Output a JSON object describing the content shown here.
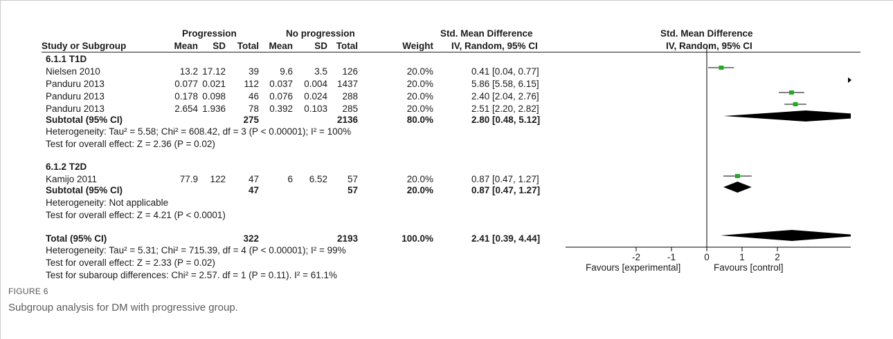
{
  "header": {
    "group1": "Progression",
    "group2": "No progression",
    "smd_top": "Std. Mean Difference",
    "smd_top_plot": "Std. Mean Difference",
    "study": "Study or Subgroup",
    "mean1": "Mean",
    "sd1": "SD",
    "total1": "Total",
    "mean2": "Mean",
    "sd2": "SD",
    "total2": "Total",
    "weight": "Weight",
    "smd_sub": "IV, Random, 95% CI",
    "smd_sub_plot": "IV, Random, 95% CI"
  },
  "subgroups": [
    {
      "title": "6.1.1 T1D",
      "rows": [
        {
          "study": "Nielsen 2010",
          "mean1": "13.2",
          "sd1": "17.12",
          "total1": "39",
          "mean2": "9.6",
          "sd2": "3.5",
          "total2": "126",
          "weight": "20.0%",
          "ci": "0.41 [0.04, 0.77]"
        },
        {
          "study": "Panduru 2013",
          "mean1": "0.077",
          "sd1": "0.021",
          "total1": "112",
          "mean2": "0.037",
          "sd2": "0.004",
          "total2": "1437",
          "weight": "20.0%",
          "ci": "5.86 [5.58, 6.15]"
        },
        {
          "study": "Panduru 2013",
          "mean1": "0.178",
          "sd1": "0.098",
          "total1": "46",
          "mean2": "0.076",
          "sd2": "0.024",
          "total2": "288",
          "weight": "20.0%",
          "ci": "2.40 [2.04, 2.76]"
        },
        {
          "study": "Panduru 2013",
          "mean1": "2.654",
          "sd1": "1.936",
          "total1": "78",
          "mean2": "0.392",
          "sd2": "0.103",
          "total2": "285",
          "weight": "20.0%",
          "ci": "2.51 [2.20, 2.82]"
        }
      ],
      "subtotal": {
        "label": "Subtotal (95% CI)",
        "total1": "275",
        "total2": "2136",
        "weight": "80.0%",
        "ci": "2.80 [0.48, 5.12]"
      },
      "heterogeneity": "Heterogeneity: Tau² = 5.58; Chi² = 608.42, df = 3 (P < 0.00001); I² = 100%",
      "overall": "Test for overall effect: Z = 2.36 (P = 0.02)"
    },
    {
      "title": "6.1.2 T2D",
      "rows": [
        {
          "study": "Kamijo 2011",
          "mean1": "77.9",
          "sd1": "122",
          "total1": "47",
          "mean2": "6",
          "sd2": "6.52",
          "total2": "57",
          "weight": "20.0%",
          "ci": "0.87 [0.47, 1.27]"
        }
      ],
      "subtotal": {
        "label": "Subtotal (95% CI)",
        "total1": "47",
        "total2": "57",
        "weight": "20.0%",
        "ci": "0.87 [0.47, 1.27]"
      },
      "heterogeneity": "Heterogeneity: Not applicable",
      "overall": "Test for overall effect: Z = 4.21 (P < 0.0001)"
    }
  ],
  "total": {
    "label": "Total (95% CI)",
    "total1": "322",
    "total2": "2193",
    "weight": "100.0%",
    "ci": "2.41 [0.39, 4.44]"
  },
  "footer": {
    "heterogeneity": "Heterogeneity: Tau² = 5.31; Chi² = 715.39, df = 4 (P < 0.00001); I² = 99%",
    "overall": "Test for overall effect: Z = 2.33 (P = 0.02)",
    "subgroup_diff": "Test for subaroup differences: Chi² = 2.57. df = 1 (P = 0.11). I² = 61.1%"
  },
  "axis": {
    "favours_left": "Favours [experimental]",
    "favours_right": "Favours [control]"
  },
  "caption": {
    "label": "FIGURE 6",
    "text": "Subgroup analysis for DM with progressive group."
  },
  "chart_data": {
    "type": "forest",
    "xlim": [
      -3,
      3
    ],
    "ticks": [
      -2,
      -1,
      0,
      1,
      2
    ],
    "tick_labels": [
      "-2",
      "-1",
      "0",
      "1",
      "2"
    ],
    "colors": {
      "square": "#22aa22",
      "diamond": "#000000",
      "line": "#000000"
    },
    "studies": [
      {
        "estimate": 0.41,
        "lo": 0.04,
        "hi": 0.77
      },
      {
        "estimate": 5.86,
        "lo": 5.58,
        "hi": 6.15
      },
      {
        "estimate": 2.4,
        "lo": 2.04,
        "hi": 2.76
      },
      {
        "estimate": 2.51,
        "lo": 2.2,
        "hi": 2.82
      },
      {
        "estimate": 0.87,
        "lo": 0.47,
        "hi": 1.27
      }
    ],
    "diamonds": [
      {
        "estimate": 2.8,
        "lo": 0.48,
        "hi": 5.12
      },
      {
        "estimate": 0.87,
        "lo": 0.47,
        "hi": 1.27
      },
      {
        "estimate": 2.41,
        "lo": 0.39,
        "hi": 4.44
      }
    ]
  }
}
